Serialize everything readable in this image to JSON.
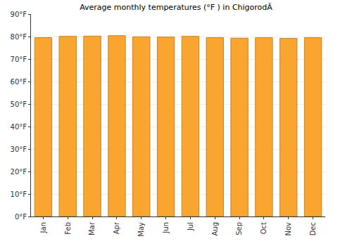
{
  "chart_data": {
    "type": "bar",
    "title": "Average monthly temperatures (°F ) in ChigorodĂ",
    "categories": [
      "Jan",
      "Feb",
      "Mar",
      "Apr",
      "May",
      "Jun",
      "Jul",
      "Aug",
      "Sep",
      "Oct",
      "Nov",
      "Dec"
    ],
    "values": [
      79.5,
      80.1,
      80.2,
      80.4,
      79.9,
      79.8,
      80.1,
      79.5,
      79.3,
      79.5,
      79.2,
      79.5
    ],
    "color": "#fba531",
    "ylim": [
      0,
      90
    ],
    "yticks": [
      {
        "value": 0,
        "label": "0°F"
      },
      {
        "value": 10,
        "label": "10°F"
      },
      {
        "value": 20,
        "label": "20°F"
      },
      {
        "value": 30,
        "label": "30°F"
      },
      {
        "value": 40,
        "label": "40°F"
      },
      {
        "value": 50,
        "label": "50°F"
      },
      {
        "value": 60,
        "label": "60°F"
      },
      {
        "value": 70,
        "label": "70°F"
      },
      {
        "value": 80,
        "label": "80°F"
      },
      {
        "value": 90,
        "label": "90°F"
      }
    ],
    "grid": true
  }
}
